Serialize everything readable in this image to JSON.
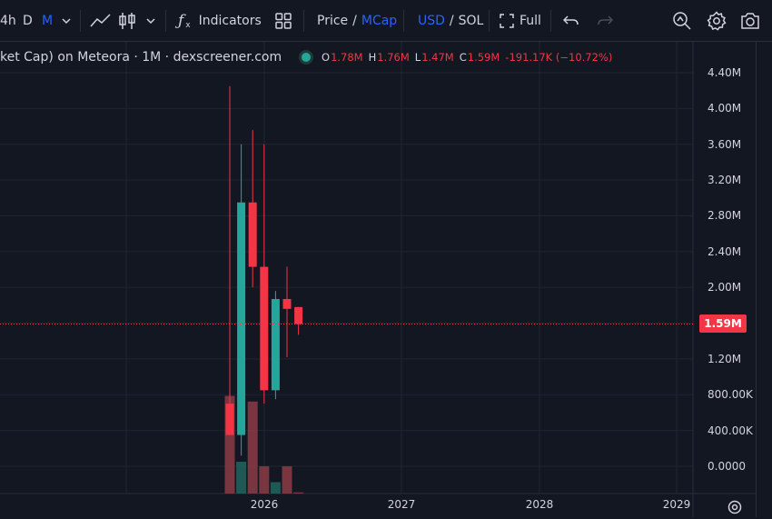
{
  "toolbar": {
    "intervals": [
      "4h",
      "D",
      "M"
    ],
    "active_interval": "M",
    "indicators_label": "Indicators",
    "price_label": "Price",
    "slash": "/",
    "mcap_label": "MCap",
    "usd_label": "USD",
    "sol_label": "SOL",
    "full_label": "Full"
  },
  "legend": {
    "title": "ket Cap) on Meteora · 1M · dexscreener.com",
    "ohlc": {
      "o_key": "O",
      "o": "1.78M",
      "h_key": "H",
      "h": "1.76M",
      "l_key": "L",
      "l": "1.47M",
      "c_key": "C",
      "c": "1.59M",
      "change": "-191.17K (−10.72%)"
    }
  },
  "colors": {
    "up": "#26a69a",
    "down": "#f23645",
    "accent": "#2962ff",
    "background": "#131722",
    "grid": "#1f2430"
  },
  "chart_data": {
    "type": "candlestick",
    "y_ticks": [
      "4.40M",
      "4.00M",
      "3.60M",
      "3.20M",
      "2.80M",
      "2.40M",
      "2.00M",
      "1.20M",
      "800.00K",
      "400.00K",
      "0.0000"
    ],
    "x_ticks": [
      "2026",
      "2027",
      "2028",
      "2029"
    ],
    "last_price_label": "1.59M",
    "last_price": 1590000,
    "ylim": [
      -300000,
      4700000
    ],
    "x_period": [
      "2025-10",
      "2025-11",
      "2025-12",
      "2026-01",
      "2026-02",
      "2026-03",
      "2026-04"
    ],
    "candles": [
      {
        "month": "2025-10",
        "open": 700000,
        "high": 4250000,
        "low": 350000,
        "close": 350000
      },
      {
        "month": "2025-11",
        "open": 350000,
        "high": 3600000,
        "low": 120000,
        "close": 2950000
      },
      {
        "month": "2025-12",
        "open": 2950000,
        "high": 3760000,
        "low": 2000000,
        "close": 2230000
      },
      {
        "month": "2026-01",
        "open": 2230000,
        "high": 3600000,
        "low": 700000,
        "close": 850000
      },
      {
        "month": "2026-02",
        "open": 850000,
        "high": 1960000,
        "low": 750000,
        "close": 1870000
      },
      {
        "month": "2026-03",
        "open": 1870000,
        "high": 2230000,
        "low": 1220000,
        "close": 1760000
      },
      {
        "month": "2026-04",
        "open": 1780000,
        "high": 1760000,
        "low": 1470000,
        "close": 1590000
      }
    ],
    "volume_relative": [
      0.86,
      0.28,
      0.81,
      0.24,
      0.1,
      0.24,
      0.01
    ]
  }
}
